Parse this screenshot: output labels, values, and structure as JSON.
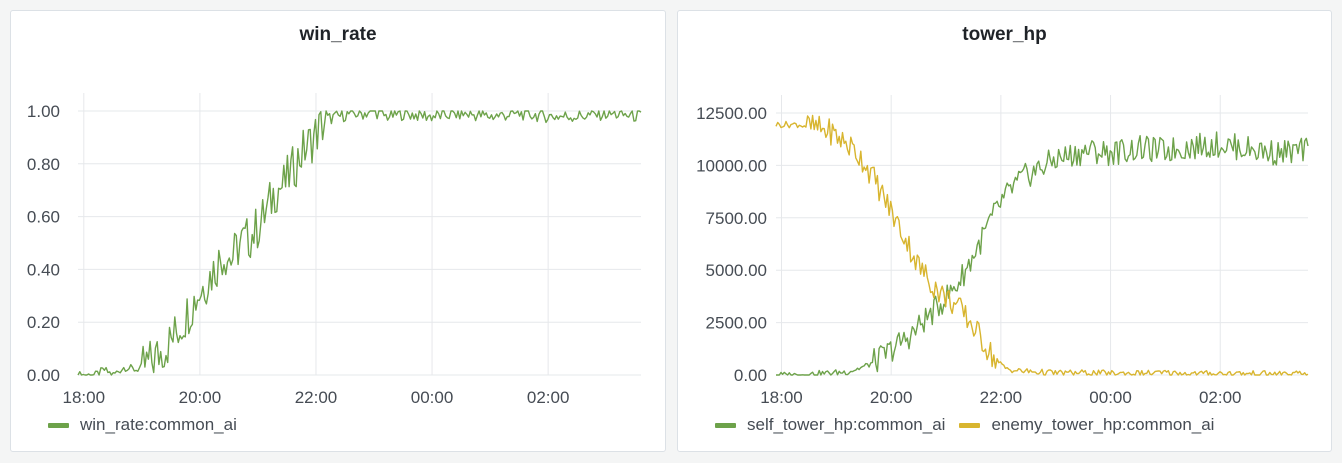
{
  "colors": {
    "green": "#6da24a",
    "yellow": "#d8b52f"
  },
  "chart_data": [
    {
      "type": "line",
      "title": "win_rate",
      "xlabel": "",
      "ylabel": "",
      "x_ticks": [
        "18:00",
        "20:00",
        "22:00",
        "00:00",
        "02:00"
      ],
      "x_tick_hours": [
        18,
        20,
        22,
        24,
        26
      ],
      "x_range_hours": [
        17.9,
        27.6
      ],
      "y_ticks": [
        "0.00",
        "0.20",
        "0.40",
        "0.60",
        "0.80",
        "1.00"
      ],
      "ylim": [
        0,
        1
      ],
      "grid": true,
      "legend": "bottom-left",
      "series": [
        {
          "name": "win_rate:common_ai",
          "color": "#6da24a",
          "x_hours": [
            17.9,
            18.2,
            18.35,
            18.5,
            18.7,
            18.9,
            19.1,
            19.3,
            19.5,
            19.65,
            19.8,
            19.95,
            20.1,
            20.25,
            20.4,
            20.55,
            20.7,
            20.85,
            21.0,
            21.15,
            21.3,
            21.45,
            21.6,
            21.75,
            21.9,
            22.05,
            22.2,
            22.4,
            22.6,
            22.8,
            23.0,
            23.2,
            23.5,
            24.0,
            24.5,
            25.0,
            25.5,
            26.0,
            26.5,
            27.0,
            27.6
          ],
          "values": [
            0.0,
            0.0,
            0.02,
            0.0,
            0.03,
            0.02,
            0.04,
            0.08,
            0.13,
            0.18,
            0.24,
            0.3,
            0.35,
            0.4,
            0.46,
            0.44,
            0.5,
            0.52,
            0.56,
            0.62,
            0.7,
            0.72,
            0.78,
            0.84,
            0.88,
            0.93,
            0.97,
            0.98,
            0.99,
            0.99,
            1.0,
            0.98,
            0.99,
            0.98,
            0.99,
            0.98,
            0.99,
            0.98,
            0.98,
            0.99,
            0.98
          ]
        }
      ]
    },
    {
      "type": "line",
      "title": "tower_hp",
      "xlabel": "",
      "ylabel": "",
      "x_ticks": [
        "18:00",
        "20:00",
        "22:00",
        "00:00",
        "02:00"
      ],
      "x_tick_hours": [
        18,
        20,
        22,
        24,
        26
      ],
      "x_range_hours": [
        17.9,
        27.6
      ],
      "y_ticks": [
        "0.00",
        "2500.00",
        "5000.00",
        "7500.00",
        "10000.00",
        "12500.00"
      ],
      "ylim": [
        0,
        12500
      ],
      "grid": true,
      "legend": "bottom-left",
      "series": [
        {
          "name": "self_tower_hp:common_ai",
          "color": "#6da24a",
          "x_hours": [
            17.9,
            18.3,
            18.6,
            18.9,
            19.2,
            19.4,
            19.6,
            19.8,
            20.0,
            20.2,
            20.4,
            20.6,
            20.8,
            21.0,
            21.2,
            21.4,
            21.6,
            21.8,
            22.0,
            22.2,
            22.4,
            22.6,
            22.8,
            23.0,
            23.3,
            23.6,
            24.0,
            24.5,
            25.0,
            25.5,
            26.0,
            26.5,
            27.0,
            27.6
          ],
          "values": [
            0,
            0,
            50,
            100,
            150,
            300,
            500,
            800,
            1200,
            1600,
            2000,
            2600,
            3100,
            3700,
            4300,
            5200,
            6200,
            7300,
            8200,
            8900,
            9400,
            9700,
            10000,
            10300,
            10500,
            10700,
            10600,
            10800,
            10700,
            10900,
            11000,
            10800,
            10600,
            10700
          ]
        },
        {
          "name": "enemy_tower_hp:common_ai",
          "color": "#d8b52f",
          "x_hours": [
            17.9,
            18.3,
            18.6,
            18.9,
            19.1,
            19.3,
            19.5,
            19.7,
            19.9,
            20.1,
            20.3,
            20.5,
            20.7,
            20.9,
            21.1,
            21.3,
            21.5,
            21.7,
            21.9,
            22.1,
            22.3,
            22.6,
            23.0,
            23.5,
            24.0,
            24.5,
            25.0,
            25.5,
            26.0,
            26.5,
            27.0,
            27.6
          ],
          "values": [
            11950,
            11950,
            11800,
            11600,
            11200,
            10800,
            10200,
            9300,
            8300,
            7300,
            6300,
            5200,
            4500,
            3900,
            3500,
            3000,
            2300,
            1500,
            700,
            300,
            200,
            150,
            100,
            100,
            80,
            80,
            100,
            60,
            80,
            60,
            50,
            50
          ]
        }
      ]
    }
  ]
}
